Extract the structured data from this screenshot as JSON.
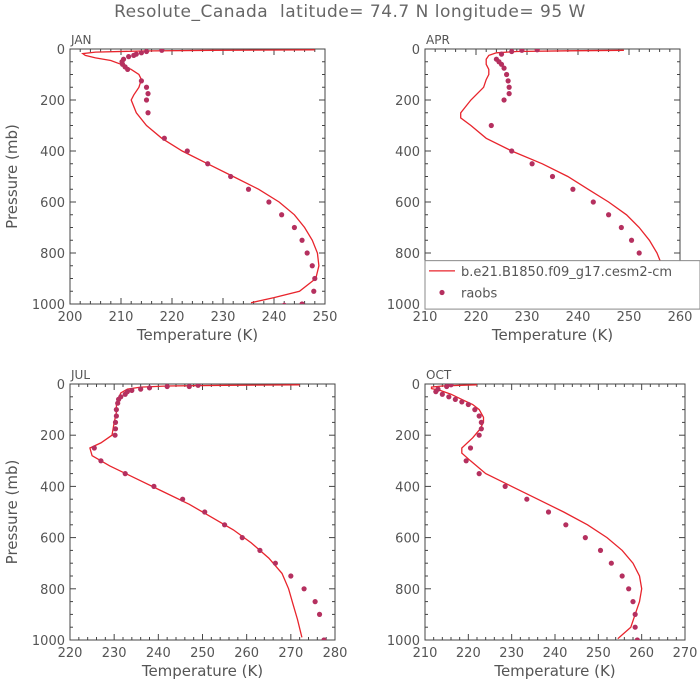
{
  "title": "Resolute_Canada  latitude= 74.7 N longitude= 95 W",
  "chart_data": [
    {
      "type": "line",
      "panel": "JAN",
      "xlabel": "Temperature (K)",
      "ylabel": "Pressure (mb)",
      "xlim": [
        200,
        250
      ],
      "ylim": [
        1000,
        0
      ],
      "xticks": [
        200,
        210,
        220,
        230,
        240,
        250
      ],
      "yticks": [
        0,
        200,
        400,
        600,
        800,
        1000
      ],
      "legend": null,
      "series": [
        {
          "name": "b.e21.B1850.f09_g17.cesm2-cm",
          "kind": "line",
          "color": "#e8242c",
          "x": [
            248,
            228,
            214,
            205,
            202.5,
            203,
            205,
            208,
            210,
            212,
            213.5,
            214,
            213.5,
            212.5,
            212,
            213,
            215,
            218,
            222,
            227,
            232,
            237,
            241,
            244,
            246,
            247.5,
            248.5,
            248.8,
            248.2,
            245,
            240,
            235.5
          ],
          "y": [
            3,
            5,
            8,
            12,
            18,
            25,
            35,
            45,
            60,
            80,
            100,
            120,
            150,
            180,
            200,
            250,
            300,
            350,
            400,
            450,
            500,
            550,
            600,
            650,
            700,
            750,
            800,
            850,
            900,
            950,
            975,
            995
          ]
        },
        {
          "name": "raobs",
          "kind": "scatter",
          "color": "#b5305f",
          "x": [
            218,
            215,
            214,
            213,
            212.5,
            211.5,
            210.5,
            210.2,
            210.3,
            210.8,
            211.3,
            214,
            215,
            215.3,
            215,
            215.3,
            218.5,
            223,
            227,
            231.5,
            235,
            239,
            241.5,
            244,
            245.5,
            246.5,
            247.5,
            248,
            247.8,
            245.5,
            242
          ],
          "y": [
            5,
            10,
            15,
            20,
            25,
            30,
            40,
            50,
            60,
            70,
            80,
            125,
            150,
            175,
            200,
            250,
            350,
            400,
            450,
            500,
            550,
            600,
            650,
            700,
            750,
            800,
            850,
            900,
            950,
            1000,
            1005
          ]
        }
      ]
    },
    {
      "type": "line",
      "panel": "APR",
      "xlabel": "Temperature (K)",
      "ylabel": "",
      "xlim": [
        210,
        260
      ],
      "ylim": [
        1000,
        0
      ],
      "xticks": [
        210,
        220,
        230,
        240,
        250,
        260
      ],
      "yticks": [
        0,
        200,
        400,
        600,
        800,
        1000
      ],
      "legend": {
        "position": "bottom-right",
        "entries": [
          "b.e21.B1850.f09_g17.cesm2-cm",
          "raobs"
        ]
      },
      "series": [
        {
          "name": "b.e21.B1850.f09_g17.cesm2-cm",
          "kind": "line",
          "color": "#e8242c",
          "x": [
            249,
            238,
            228,
            224,
            222.5,
            222,
            222,
            222.5,
            222.5,
            222,
            221.5,
            219,
            217,
            217,
            219,
            222,
            227,
            233,
            238,
            242,
            246,
            249.5,
            252,
            254,
            255.5,
            256.5,
            256.5,
            255.5,
            253,
            250
          ],
          "y": [
            5,
            7,
            10,
            15,
            25,
            40,
            60,
            80,
            100,
            120,
            150,
            200,
            250,
            270,
            300,
            350,
            400,
            450,
            500,
            550,
            600,
            650,
            700,
            750,
            800,
            850,
            900,
            950,
            980,
            1000
          ]
        },
        {
          "name": "raobs",
          "kind": "scatter",
          "color": "#b5305f",
          "x": [
            232,
            229,
            227,
            225,
            224,
            224.5,
            225,
            225.5,
            226,
            226.3,
            226.5,
            226.5,
            225.5,
            223,
            227,
            231,
            235,
            239,
            243,
            246,
            248.5,
            250.5,
            252,
            253.5,
            253.8,
            253.5,
            252,
            251
          ],
          "y": [
            3,
            5,
            10,
            20,
            40,
            50,
            60,
            75,
            100,
            125,
            150,
            175,
            200,
            300,
            400,
            450,
            500,
            550,
            600,
            650,
            700,
            750,
            800,
            850,
            900,
            950,
            950,
            1000
          ]
        }
      ]
    },
    {
      "type": "line",
      "panel": "JUL",
      "xlabel": "Temperature (K)",
      "ylabel": "Pressure (mb)",
      "xlim": [
        220,
        280
      ],
      "ylim": [
        1000,
        0
      ],
      "xticks": [
        220,
        230,
        240,
        250,
        260,
        270,
        280
      ],
      "yticks": [
        0,
        200,
        400,
        600,
        800,
        1000
      ],
      "legend": null,
      "series": [
        {
          "name": "b.e21.B1850.f09_g17.cesm2-cm",
          "kind": "line",
          "color": "#e8242c",
          "x": [
            272,
            255,
            242,
            236,
            233,
            231.5,
            231,
            230.5,
            230.5,
            230,
            229.5,
            227,
            224.5,
            225,
            229,
            235,
            241,
            247,
            252,
            257,
            261,
            265,
            268,
            269.5,
            270.5,
            271.5,
            272.5
          ],
          "y": [
            3,
            5,
            8,
            12,
            20,
            35,
            55,
            80,
            110,
            150,
            200,
            230,
            250,
            280,
            320,
            370,
            420,
            470,
            520,
            570,
            620,
            680,
            740,
            800,
            860,
            920,
            990
          ]
        },
        {
          "name": "raobs",
          "kind": "scatter",
          "color": "#b5305f",
          "x": [
            249,
            247,
            242,
            238,
            236,
            234,
            233,
            232.5,
            231.5,
            231,
            230.8,
            230.5,
            230.5,
            230.3,
            230.3,
            230.2,
            225.5,
            227,
            232.5,
            239,
            245.5,
            250.5,
            255,
            259,
            263,
            266.5,
            270,
            273,
            275.5,
            276.5,
            277.5
          ],
          "y": [
            5,
            10,
            10,
            15,
            20,
            25,
            30,
            40,
            50,
            60,
            75,
            100,
            125,
            150,
            175,
            200,
            250,
            300,
            350,
            400,
            450,
            500,
            550,
            600,
            650,
            700,
            750,
            800,
            850,
            900,
            1000
          ]
        }
      ]
    },
    {
      "type": "line",
      "panel": "OCT",
      "xlabel": "Temperature (K)",
      "ylabel": "",
      "xlim": [
        210,
        270
      ],
      "ylim": [
        1000,
        0
      ],
      "xticks": [
        210,
        220,
        230,
        240,
        250,
        260,
        270
      ],
      "yticks": [
        0,
        200,
        400,
        600,
        800,
        1000
      ],
      "legend": null,
      "series": [
        {
          "name": "b.e21.B1850.f09_g17.cesm2-cm",
          "kind": "line",
          "color": "#e8242c",
          "x": [
            222,
            218,
            214,
            211.5,
            211.5,
            213.5,
            216,
            218.5,
            221,
            222.5,
            223.5,
            223.5,
            222.5,
            221,
            218.5,
            218.5,
            220.5,
            224,
            230,
            236,
            242,
            247.5,
            252,
            255.5,
            258,
            259.5,
            260,
            259.5,
            257.5,
            254.5
          ],
          "y": [
            3,
            5,
            8,
            12,
            18,
            25,
            40,
            60,
            80,
            100,
            130,
            150,
            180,
            210,
            250,
            270,
            300,
            350,
            400,
            450,
            500,
            550,
            600,
            650,
            700,
            750,
            800,
            850,
            950,
            995
          ]
        },
        {
          "name": "raobs",
          "kind": "scatter",
          "color": "#b5305f",
          "x": [
            216,
            215,
            213,
            212.5,
            214,
            215.5,
            217,
            218.5,
            220,
            221.5,
            222.5,
            223,
            223,
            222.5,
            220.5,
            219.5,
            222.5,
            228.5,
            233.5,
            238.5,
            242.5,
            247,
            250.5,
            253,
            255.5,
            257,
            258,
            258.5,
            258.5,
            259
          ],
          "y": [
            3,
            10,
            20,
            30,
            40,
            50,
            60,
            70,
            80,
            100,
            125,
            150,
            175,
            200,
            250,
            300,
            350,
            400,
            450,
            500,
            550,
            600,
            650,
            700,
            750,
            800,
            850,
            900,
            950,
            1000
          ]
        }
      ]
    }
  ]
}
